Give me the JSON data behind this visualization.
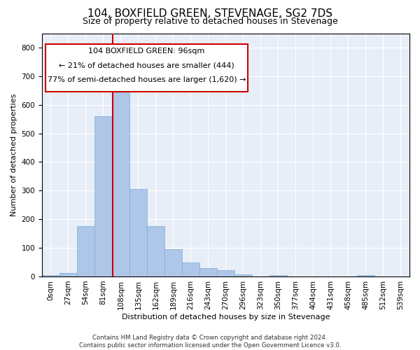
{
  "title": "104, BOXFIELD GREEN, STEVENAGE, SG2 7DS",
  "subtitle": "Size of property relative to detached houses in Stevenage",
  "xlabel": "Distribution of detached houses by size in Stevenage",
  "ylabel": "Number of detached properties",
  "footer_line1": "Contains HM Land Registry data © Crown copyright and database right 2024.",
  "footer_line2": "Contains public sector information licensed under the Open Government Licence v3.0.",
  "bar_color": "#aec6e8",
  "bar_edge_color": "#7aafd4",
  "bg_color": "#e8eef8",
  "grid_color": "#ffffff",
  "annotation_box_color": "#cc0000",
  "vline_color": "#cc0000",
  "bins": [
    "0sqm",
    "27sqm",
    "54sqm",
    "81sqm",
    "108sqm",
    "135sqm",
    "162sqm",
    "189sqm",
    "216sqm",
    "243sqm",
    "270sqm",
    "296sqm",
    "323sqm",
    "350sqm",
    "377sqm",
    "404sqm",
    "431sqm",
    "458sqm",
    "485sqm",
    "512sqm",
    "539sqm"
  ],
  "bar_heights": [
    5,
    12,
    175,
    560,
    645,
    305,
    175,
    95,
    48,
    30,
    22,
    8,
    0,
    5,
    0,
    0,
    0,
    0,
    5,
    0,
    0
  ],
  "bin_width": 27,
  "subject_size": 96,
  "subject_label": "104 BOXFIELD GREEN: 96sqm",
  "annot_line2": "← 21% of detached houses are smaller (444)",
  "annot_line3": "77% of semi-detached houses are larger (1,620) →",
  "ylim": [
    0,
    850
  ],
  "yticks": [
    0,
    100,
    200,
    300,
    400,
    500,
    600,
    700,
    800
  ],
  "title_fontsize": 11,
  "subtitle_fontsize": 9,
  "label_fontsize": 8,
  "tick_fontsize": 7.5,
  "annot_fontsize": 8
}
